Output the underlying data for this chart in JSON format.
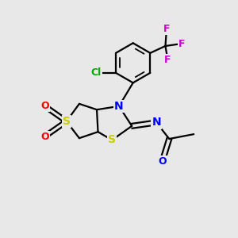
{
  "background_color": "#e8e8e8",
  "figsize": [
    3.0,
    3.0
  ],
  "dpi": 100,
  "atom_colors": {
    "S": "#cccc00",
    "O": "#ff0000",
    "N": "#0000ff",
    "Cl": "#00aa00",
    "F": "#cc00cc",
    "C": "#000000"
  }
}
